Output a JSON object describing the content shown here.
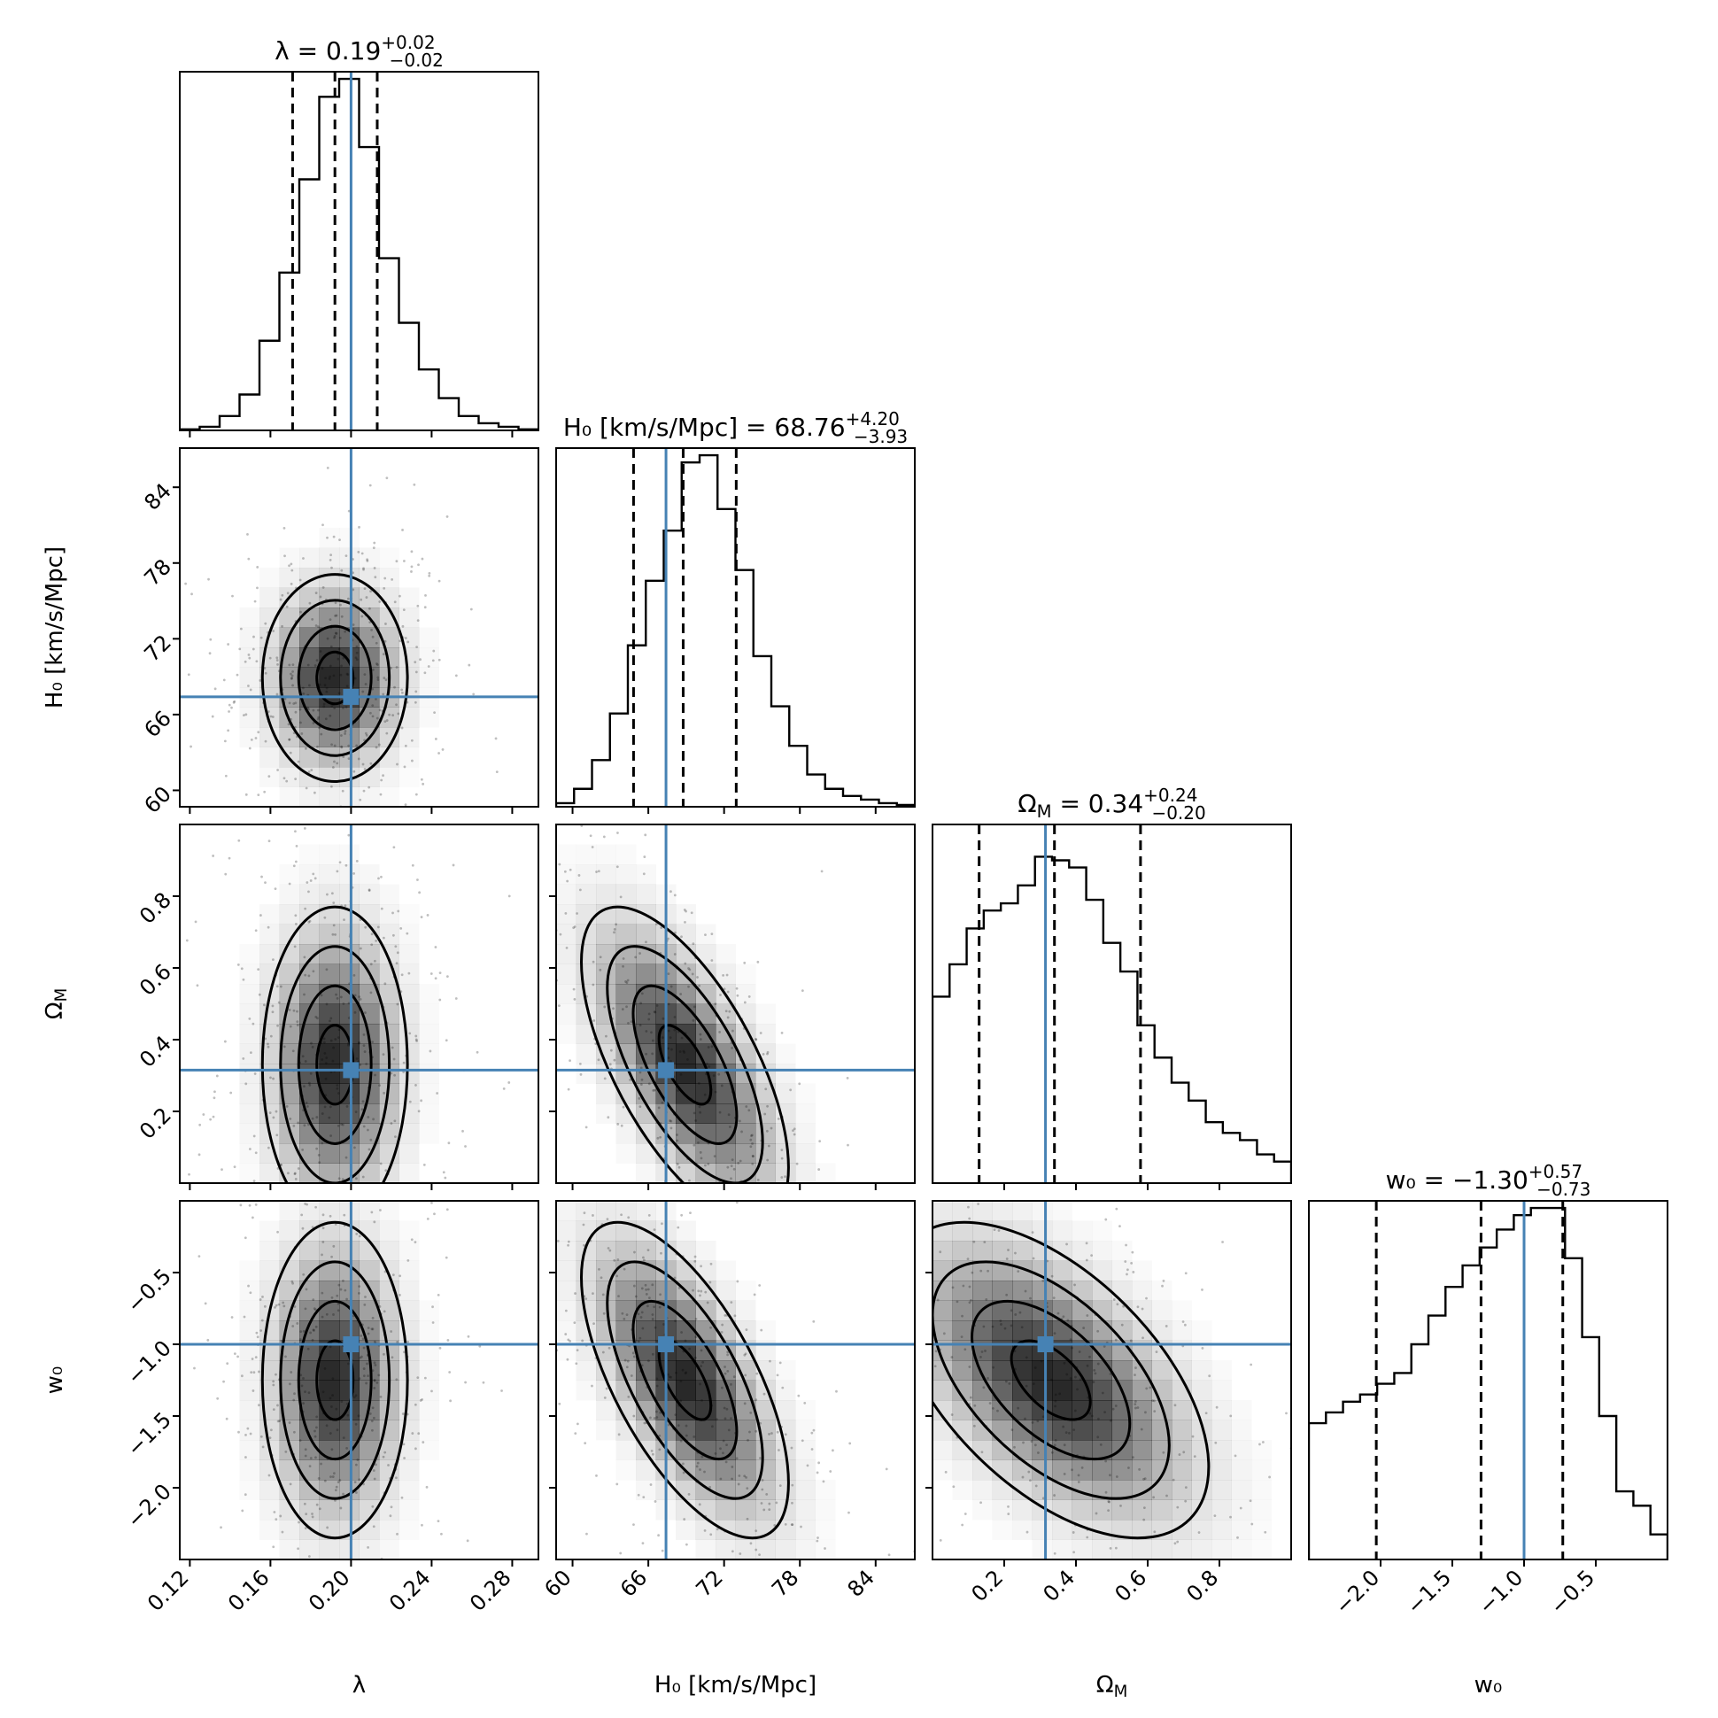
{
  "chart_data": {
    "type": "corner",
    "colors": {
      "truth": "#4682b4",
      "contour": "#000000",
      "density": "#000000"
    },
    "parameters": [
      {
        "id": "lambda",
        "axis_label_html": "λ",
        "range": [
          0.115,
          0.293
        ],
        "ticks": [
          0.12,
          0.16,
          0.2,
          0.24,
          0.28
        ],
        "tick_labels": [
          "0.12",
          "0.16",
          "0.20",
          "0.24",
          "0.28"
        ],
        "truth": 0.2,
        "mean": 0.192,
        "sd": 0.018,
        "quantiles": [
          0.171,
          0.192,
          0.213
        ],
        "title": {
          "lhs": "λ = 0.19",
          "sup": "+0.02",
          "sub": "−0.02"
        },
        "hist": [
          0.003,
          0.01,
          0.04,
          0.1,
          0.25,
          0.44,
          0.7,
          0.93,
          0.98,
          0.79,
          0.48,
          0.3,
          0.17,
          0.09,
          0.04,
          0.02,
          0.01,
          0.003
        ]
      },
      {
        "id": "H0",
        "axis_label_html": "H₀ [km/s/Mpc]",
        "range": [
          58.7,
          87.1
        ],
        "ticks": [
          60,
          66,
          72,
          78,
          84
        ],
        "tick_labels": [
          "60",
          "66",
          "72",
          "78",
          "84"
        ],
        "truth": 67.4,
        "mean": 68.9,
        "sd": 4.1,
        "quantiles": [
          64.83,
          68.76,
          72.96
        ],
        "title": {
          "lhs": "H₀ [km/s/Mpc] = 68.76",
          "sup": "+4.20",
          "sub": "−3.93"
        },
        "hist": [
          0.01,
          0.05,
          0.13,
          0.26,
          0.45,
          0.63,
          0.77,
          0.96,
          0.98,
          0.83,
          0.66,
          0.42,
          0.28,
          0.17,
          0.09,
          0.05,
          0.03,
          0.02,
          0.01,
          0.005
        ]
      },
      {
        "id": "OmegaM",
        "axis_label_html": "Ω<tspan baseline-shift='-30%' font-size='70%'>M</tspan>",
        "range": [
          0.0,
          1.0
        ],
        "ticks": [
          0.2,
          0.4,
          0.6,
          0.8
        ],
        "tick_labels": [
          "0.2",
          "0.4",
          "0.6",
          "0.8"
        ],
        "truth": 0.315,
        "mean": 0.33,
        "sd": 0.22,
        "quantiles": [
          0.13,
          0.34,
          0.58
        ],
        "title": {
          "lhs": "Ω<tspan baseline-shift='-30%' font-size='70%'>M</tspan> = 0.34",
          "sup": "+0.24",
          "sub": "−0.20"
        },
        "hist": [
          0.52,
          0.61,
          0.71,
          0.76,
          0.78,
          0.83,
          0.91,
          0.9,
          0.88,
          0.79,
          0.67,
          0.59,
          0.44,
          0.35,
          0.28,
          0.23,
          0.17,
          0.14,
          0.12,
          0.08,
          0.06
        ]
      },
      {
        "id": "w0",
        "axis_label_html": "w₀",
        "range": [
          -2.5,
          0.0
        ],
        "ticks": [
          -2.0,
          -1.5,
          -1.0,
          -0.5
        ],
        "tick_labels": [
          "−2.0",
          "−1.5",
          "−1.0",
          "−0.5"
        ],
        "truth": -1.0,
        "mean": -1.25,
        "sd": 0.55,
        "quantiles": [
          -2.03,
          -1.3,
          -0.73
        ],
        "title": {
          "lhs": "w₀ = −1.30",
          "sup": "+0.57",
          "sub": "−0.73"
        },
        "hist": [
          0.38,
          0.41,
          0.44,
          0.46,
          0.49,
          0.52,
          0.6,
          0.68,
          0.76,
          0.82,
          0.87,
          0.92,
          0.96,
          0.98,
          0.98,
          0.84,
          0.62,
          0.4,
          0.19,
          0.15,
          0.07
        ]
      }
    ],
    "pair_correlations": {
      "1_0": 0.0,
      "2_0": 0.0,
      "3_0": 0.0,
      "2_1": -0.65,
      "3_1": -0.65,
      "3_2": -0.55
    },
    "contour_levels_sigma": [
      0.5,
      1.0,
      1.5,
      2.0
    ]
  }
}
